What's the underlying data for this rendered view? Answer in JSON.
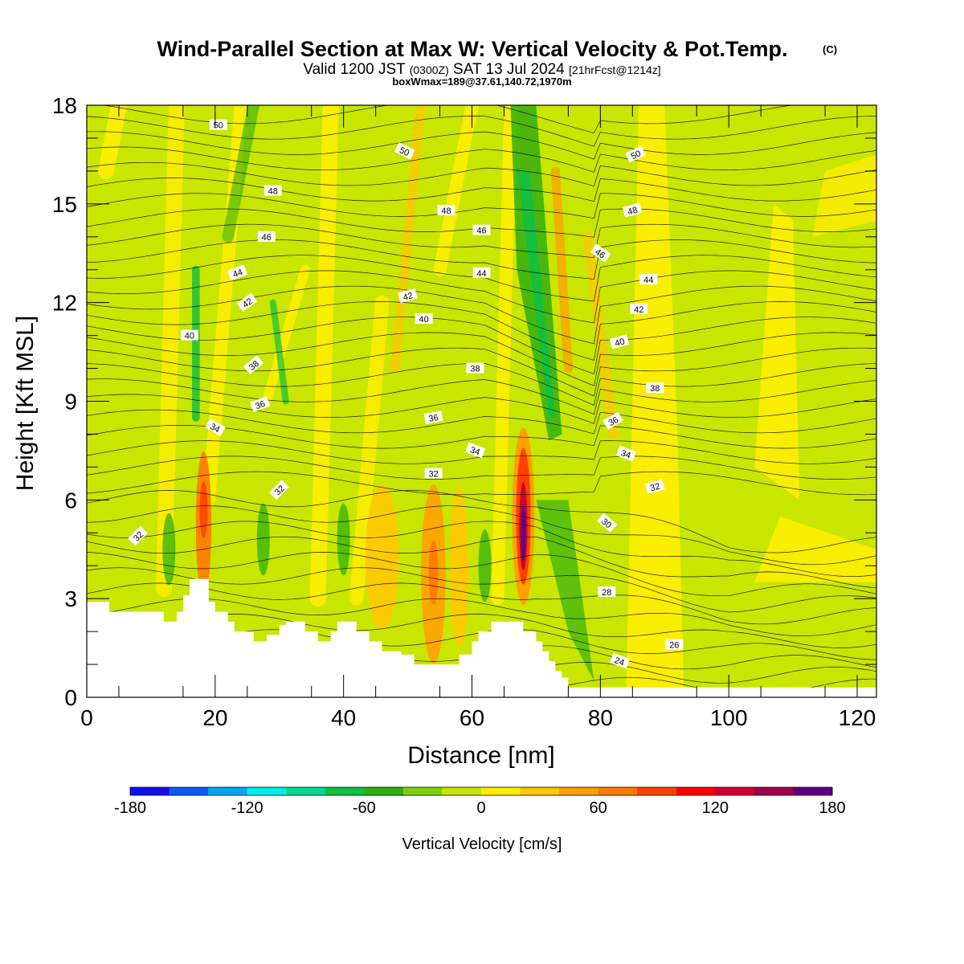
{
  "title": {
    "main": "Wind-Parallel Section at Max W: Vertical Velocity & Pot.Temp.",
    "mark": "(C)",
    "valid_prefix": "Valid 1200 JST ",
    "valid_zulu": "(0300Z)",
    "valid_date": " SAT 13 Jul 2024 ",
    "valid_fcst": "[21hrFcst@1214z]",
    "box": "boxWmax=189@37.61,140.72,1970m"
  },
  "chart_data": {
    "type": "heatmap",
    "xlabel": "Distance [nm]",
    "ylabel": "Height [Kft MSL]",
    "xlim": [
      0,
      123
    ],
    "ylim": [
      0,
      18
    ],
    "x_ticks": [
      0,
      20,
      40,
      60,
      80,
      100,
      120
    ],
    "y_ticks": [
      0,
      3,
      6,
      9,
      12,
      15,
      18
    ],
    "colorbar": {
      "label": "Vertical Velocity [cm/s]",
      "ticks": [
        -180,
        -120,
        -60,
        0,
        60,
        120,
        180
      ],
      "range": [
        -180,
        180
      ],
      "colors": [
        "#1010e8",
        "#0a5cf0",
        "#00a8f0",
        "#00eeee",
        "#00d890",
        "#10c040",
        "#30b010",
        "#80d010",
        "#c8e600",
        "#ffee00",
        "#ffc800",
        "#ffa000",
        "#ff7800",
        "#ff4000",
        "#ff0000",
        "#d00030",
        "#a00050",
        "#600080"
      ]
    },
    "theta_contour_labels": [
      {
        "value": "50",
        "x": 20.5,
        "y": 17.4,
        "rot": 0
      },
      {
        "value": "50",
        "x": 49.5,
        "y": 16.6,
        "rot": 25
      },
      {
        "value": "50",
        "x": 85.5,
        "y": 16.5,
        "rot": -25
      },
      {
        "value": "48",
        "x": 29,
        "y": 15.4,
        "rot": 0
      },
      {
        "value": "48",
        "x": 56,
        "y": 14.8,
        "rot": 0
      },
      {
        "value": "48",
        "x": 85,
        "y": 14.8,
        "rot": -15
      },
      {
        "value": "46",
        "x": 28,
        "y": 14.0,
        "rot": 0
      },
      {
        "value": "46",
        "x": 61.5,
        "y": 14.2,
        "rot": 0
      },
      {
        "value": "46",
        "x": 80,
        "y": 13.5,
        "rot": 35
      },
      {
        "value": "44",
        "x": 23.5,
        "y": 12.9,
        "rot": -20
      },
      {
        "value": "44",
        "x": 61.5,
        "y": 12.9,
        "rot": 0
      },
      {
        "value": "44",
        "x": 87.5,
        "y": 12.7,
        "rot": 0
      },
      {
        "value": "42",
        "x": 25,
        "y": 12.0,
        "rot": -35
      },
      {
        "value": "42",
        "x": 50,
        "y": 12.2,
        "rot": -15
      },
      {
        "value": "42",
        "x": 86,
        "y": 11.8,
        "rot": 0
      },
      {
        "value": "40",
        "x": 16,
        "y": 11.0,
        "rot": 0
      },
      {
        "value": "40",
        "x": 52.5,
        "y": 11.5,
        "rot": 0
      },
      {
        "value": "40",
        "x": 83,
        "y": 10.8,
        "rot": -15
      },
      {
        "value": "38",
        "x": 26,
        "y": 10.1,
        "rot": -40
      },
      {
        "value": "38",
        "x": 60.5,
        "y": 10.0,
        "rot": 0
      },
      {
        "value": "38",
        "x": 88.5,
        "y": 9.4,
        "rot": 0
      },
      {
        "value": "36",
        "x": 27,
        "y": 8.9,
        "rot": -20
      },
      {
        "value": "36",
        "x": 54,
        "y": 8.5,
        "rot": -10
      },
      {
        "value": "36",
        "x": 82,
        "y": 8.4,
        "rot": -30
      },
      {
        "value": "34",
        "x": 20,
        "y": 8.2,
        "rot": 30
      },
      {
        "value": "34",
        "x": 60.5,
        "y": 7.5,
        "rot": 20
      },
      {
        "value": "34",
        "x": 84,
        "y": 7.4,
        "rot": 20
      },
      {
        "value": "32",
        "x": 30,
        "y": 6.3,
        "rot": -45
      },
      {
        "value": "32",
        "x": 54,
        "y": 6.8,
        "rot": 0
      },
      {
        "value": "32",
        "x": 88.5,
        "y": 6.4,
        "rot": -15
      },
      {
        "value": "32",
        "x": 8,
        "y": 4.9,
        "rot": -45
      },
      {
        "value": "30",
        "x": 81,
        "y": 5.3,
        "rot": 40
      },
      {
        "value": "28",
        "x": 81,
        "y": 3.2,
        "rot": 0
      },
      {
        "value": "26",
        "x": 91.5,
        "y": 1.6,
        "rot": 0
      },
      {
        "value": "24",
        "x": 83,
        "y": 1.1,
        "rot": 20
      }
    ],
    "w_max": {
      "value": 189,
      "x": 68,
      "y": 5.5
    }
  }
}
